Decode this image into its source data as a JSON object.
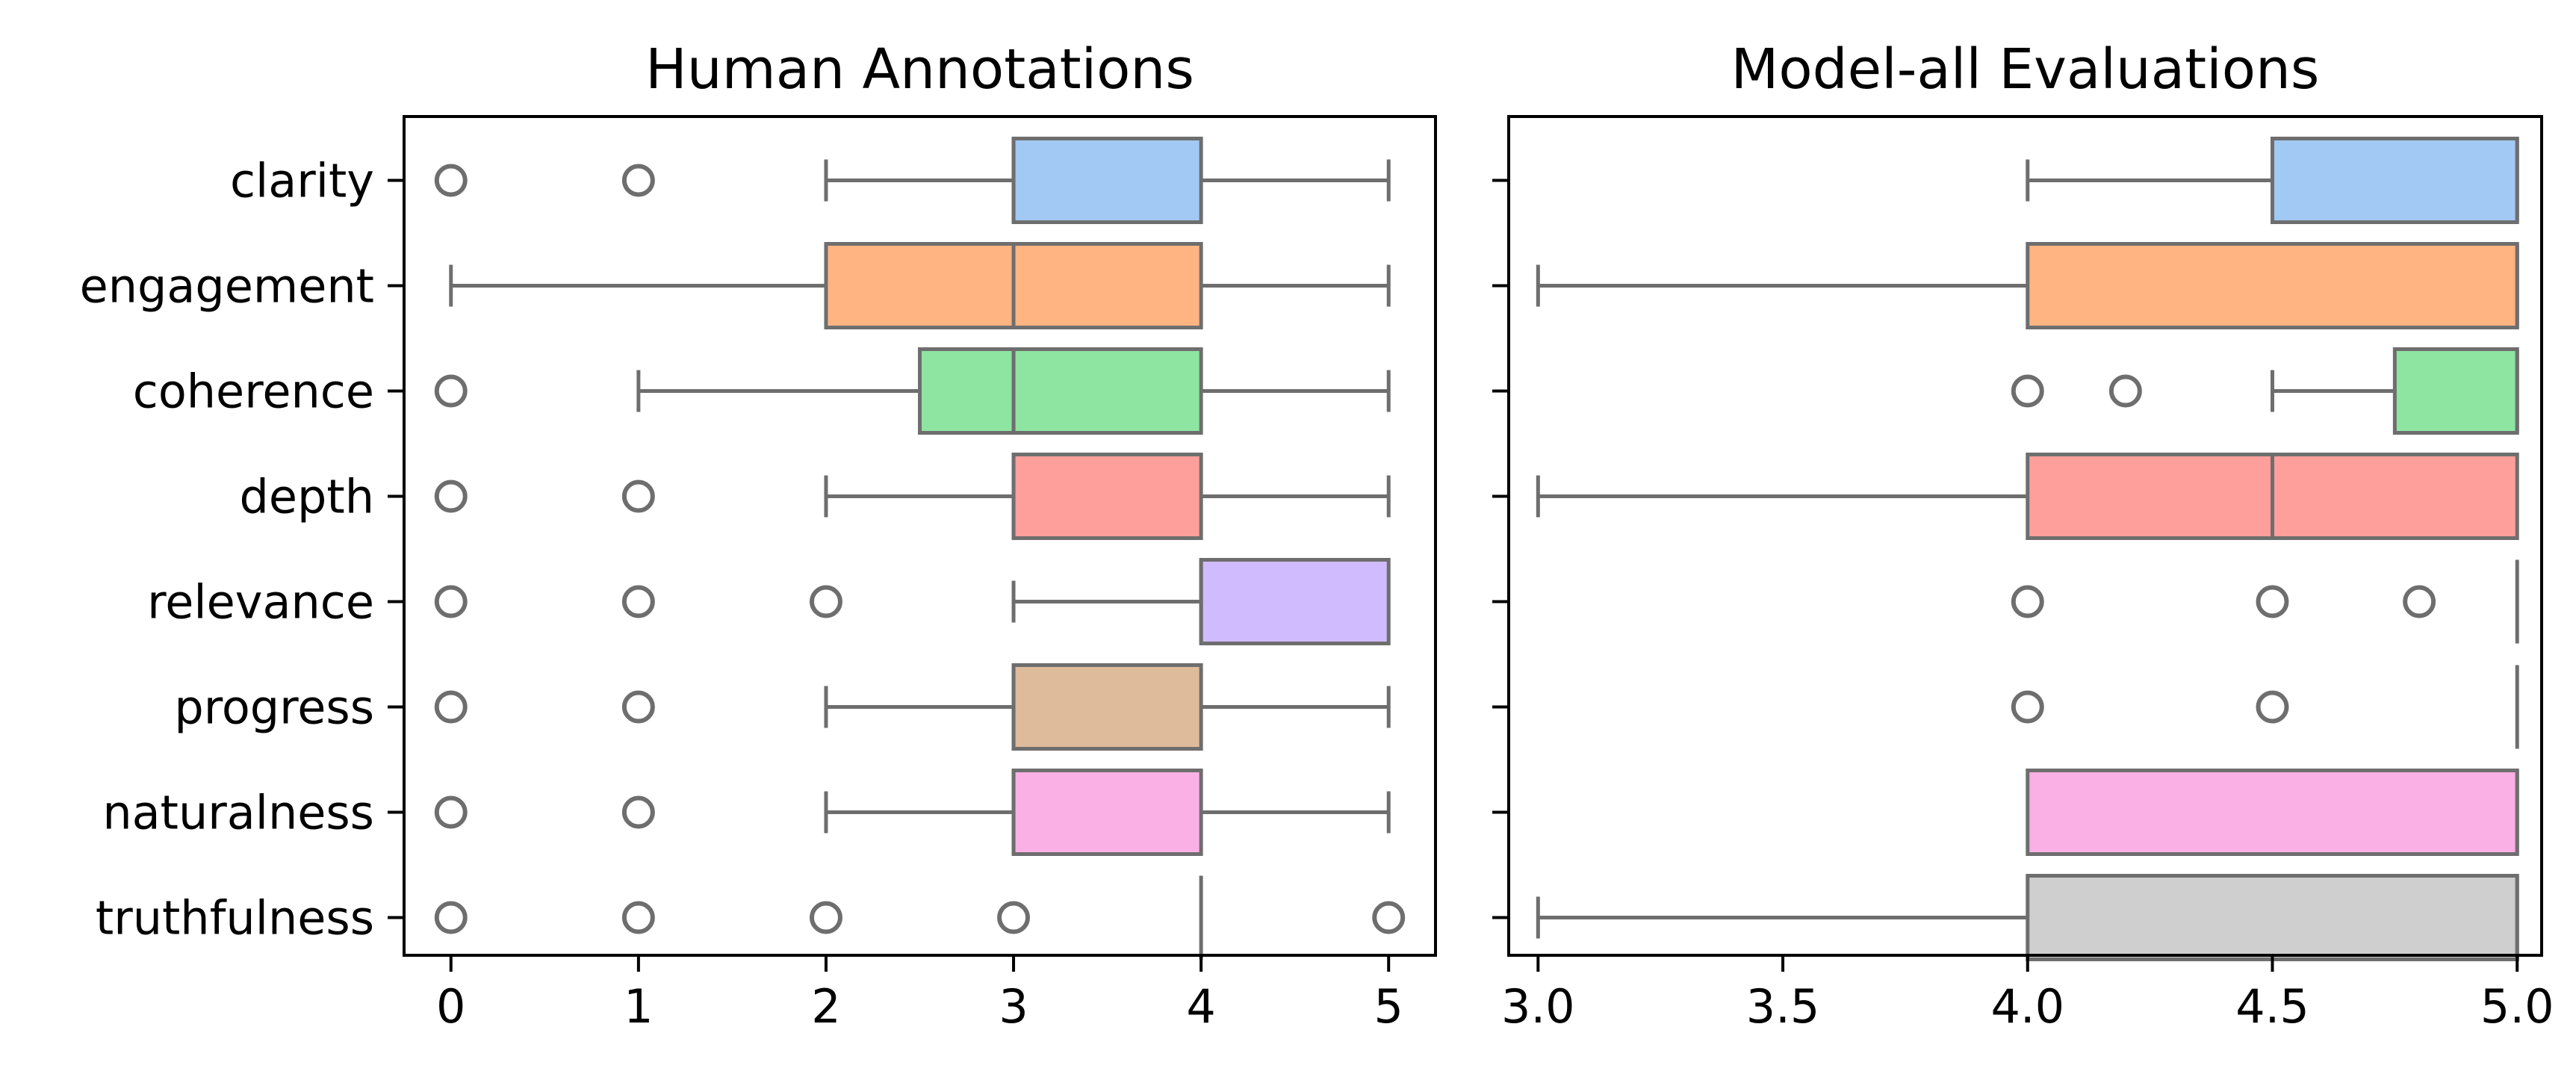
{
  "chart_data": [
    {
      "type": "boxplot",
      "title": "Human Annotations",
      "xlabel": "",
      "ylabel": "",
      "xlim": [
        -0.25,
        5.25
      ],
      "xticks": [
        0,
        1,
        2,
        3,
        4,
        5
      ],
      "xtick_labels": [
        "0",
        "1",
        "2",
        "3",
        "4",
        "5"
      ],
      "categories": [
        "clarity",
        "engagement",
        "coherence",
        "depth",
        "relevance",
        "progress",
        "naturalness",
        "truthfulness"
      ],
      "boxes": [
        {
          "q1": 3,
          "median": 3,
          "q3": 4,
          "whisker_low": 2,
          "whisker_high": 5,
          "outliers": [
            0,
            1
          ]
        },
        {
          "q1": 2,
          "median": 3,
          "q3": 4,
          "whisker_low": 0,
          "whisker_high": 5,
          "outliers": []
        },
        {
          "q1": 2.5,
          "median": 3,
          "q3": 4,
          "whisker_low": 1,
          "whisker_high": 5,
          "outliers": [
            0
          ]
        },
        {
          "q1": 3,
          "median": 3,
          "q3": 4,
          "whisker_low": 2,
          "whisker_high": 5,
          "outliers": [
            0,
            1
          ]
        },
        {
          "q1": 4,
          "median": 4,
          "q3": 5,
          "whisker_low": 3,
          "whisker_high": 5,
          "outliers": [
            0,
            1,
            2
          ]
        },
        {
          "q1": 3,
          "median": 3,
          "q3": 4,
          "whisker_low": 2,
          "whisker_high": 5,
          "outliers": [
            0,
            1
          ]
        },
        {
          "q1": 3,
          "median": 3,
          "q3": 4,
          "whisker_low": 2,
          "whisker_high": 5,
          "outliers": [
            0,
            1
          ]
        },
        {
          "q1": 4,
          "median": 4,
          "q3": 4,
          "whisker_low": 4,
          "whisker_high": 4,
          "outliers": [
            0,
            1,
            2,
            3,
            5
          ]
        }
      ]
    },
    {
      "type": "boxplot",
      "title": "Model-all Evaluations",
      "xlabel": "",
      "ylabel": "",
      "xlim": [
        2.94,
        5.05
      ],
      "xticks": [
        3.0,
        3.5,
        4.0,
        4.5,
        5.0
      ],
      "xtick_labels": [
        "3.0",
        "3.5",
        "4.0",
        "4.5",
        "5.0"
      ],
      "categories": [
        "clarity",
        "engagement",
        "coherence",
        "depth",
        "relevance",
        "progress",
        "naturalness",
        "truthfulness"
      ],
      "show_category_labels": false,
      "boxes": [
        {
          "q1": 4.5,
          "median": 5,
          "q3": 5,
          "whisker_low": 4,
          "whisker_high": 5,
          "outliers": []
        },
        {
          "q1": 4,
          "median": 5,
          "q3": 5,
          "whisker_low": 3,
          "whisker_high": 5,
          "outliers": []
        },
        {
          "q1": 4.75,
          "median": 5,
          "q3": 5,
          "whisker_low": 4.5,
          "whisker_high": 5,
          "outliers": [
            4,
            4.2
          ]
        },
        {
          "q1": 4,
          "median": 4.5,
          "q3": 5,
          "whisker_low": 3,
          "whisker_high": 5,
          "outliers": []
        },
        {
          "q1": 5,
          "median": 5,
          "q3": 5,
          "whisker_low": 5,
          "whisker_high": 5,
          "outliers": [
            4,
            4.5,
            4.8
          ]
        },
        {
          "q1": 5,
          "median": 5,
          "q3": 5,
          "whisker_low": 5,
          "whisker_high": 5,
          "outliers": [
            4,
            4.5
          ]
        },
        {
          "q1": 4,
          "median": 5,
          "q3": 5,
          "whisker_low": 4,
          "whisker_high": 5,
          "outliers": []
        },
        {
          "q1": 4,
          "median": 5,
          "q3": 5,
          "whisker_low": 3,
          "whisker_high": 5,
          "outliers": []
        }
      ]
    }
  ],
  "colors": {
    "clarity": "#a1c9f4",
    "engagement": "#ffb482",
    "coherence": "#8de5a1",
    "depth": "#ff9f9b",
    "relevance": "#d0bbff",
    "progress": "#debb9b",
    "naturalness": "#fab0e4",
    "truthfulness": "#cfcfcf",
    "line": "#6e6e6e",
    "axis": "#000000"
  }
}
